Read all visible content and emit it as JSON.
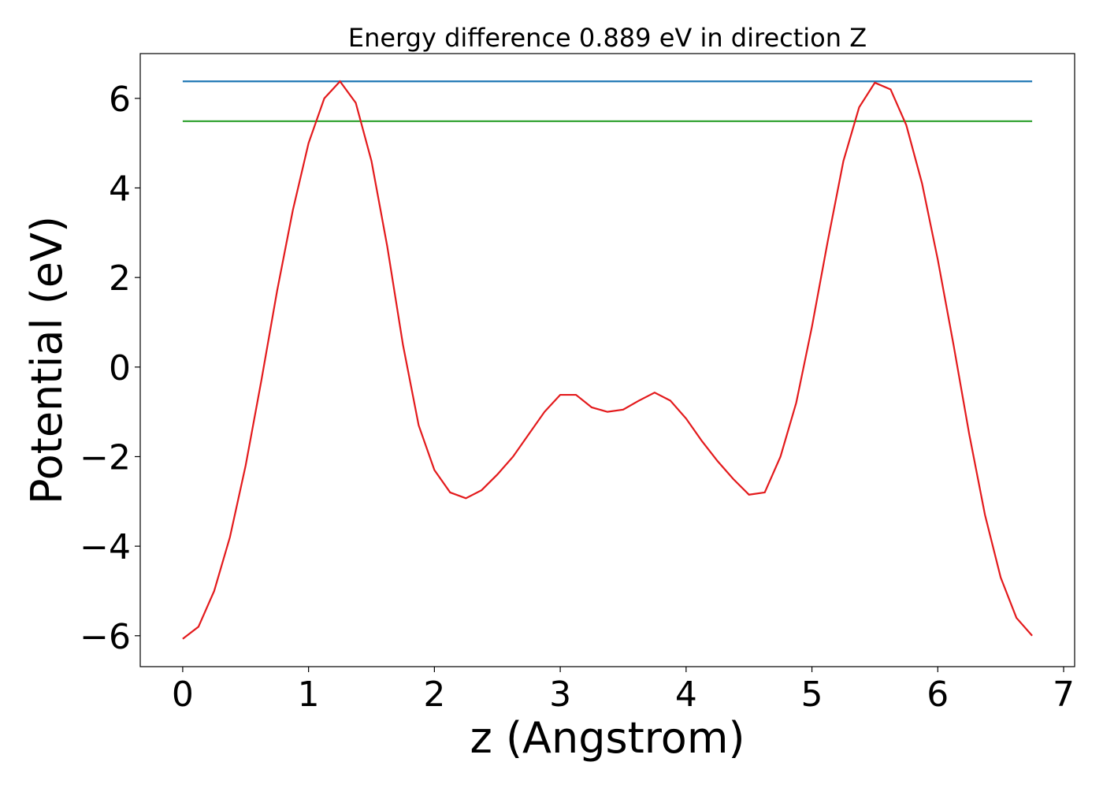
{
  "chart_data": {
    "type": "line",
    "title": "Energy difference 0.889 eV in direction Z",
    "xlabel": "z (Angstrom)",
    "ylabel": "Potential (eV)",
    "xlim": [
      -0.3375,
      7.0875
    ],
    "xticks": [
      0,
      1,
      2,
      3,
      4,
      5,
      6,
      7
    ],
    "ylim": [
      -6.69,
      7.0
    ],
    "yticks": [
      {
        "value": -6,
        "label": "−6"
      },
      {
        "value": -4,
        "label": "−4"
      },
      {
        "value": -2,
        "label": "−2"
      },
      0,
      2,
      4,
      6
    ],
    "grid": false,
    "series": [
      {
        "color": "#e31a1c",
        "x": [
          0,
          0.125,
          0.25,
          0.375,
          0.5,
          0.625,
          0.75,
          0.875,
          1.0,
          1.125,
          1.25,
          1.375,
          1.5,
          1.625,
          1.75,
          1.875,
          2.0,
          2.125,
          2.25,
          2.375,
          2.5,
          2.625,
          2.75,
          2.875,
          3.0,
          3.125,
          3.25,
          3.375,
          3.5,
          3.625,
          3.75,
          3.875,
          4.0,
          4.125,
          4.25,
          4.375,
          4.5,
          4.625,
          4.75,
          4.875,
          5.0,
          5.125,
          5.25,
          5.375,
          5.5,
          5.625,
          5.75,
          5.875,
          6.0,
          6.125,
          6.25,
          6.375,
          6.5,
          6.625,
          6.75
        ],
        "values": [
          -6.07,
          -5.8,
          -5.0,
          -3.8,
          -2.2,
          -0.3,
          1.7,
          3.5,
          5.0,
          6.0,
          6.38,
          5.9,
          4.6,
          2.7,
          0.5,
          -1.3,
          -2.3,
          -2.8,
          -2.93,
          -2.75,
          -2.4,
          -2.0,
          -1.5,
          -1.0,
          -0.62,
          -0.62,
          -0.9,
          -1.0,
          -0.95,
          -0.75,
          -0.57,
          -0.75,
          -1.15,
          -1.65,
          -2.1,
          -2.5,
          -2.85,
          -2.8,
          -2.0,
          -0.8,
          0.9,
          2.8,
          4.6,
          5.8,
          6.35,
          6.2,
          5.4,
          4.1,
          2.4,
          0.5,
          -1.5,
          -3.3,
          -4.7,
          -5.6,
          -6.0
        ]
      },
      {
        "color": "#1f77b4",
        "x": [
          0,
          6.75
        ],
        "values": [
          6.38,
          6.38
        ]
      },
      {
        "color": "#2ca02c",
        "x": [
          0,
          6.75
        ],
        "values": [
          5.49,
          5.49
        ]
      }
    ]
  }
}
